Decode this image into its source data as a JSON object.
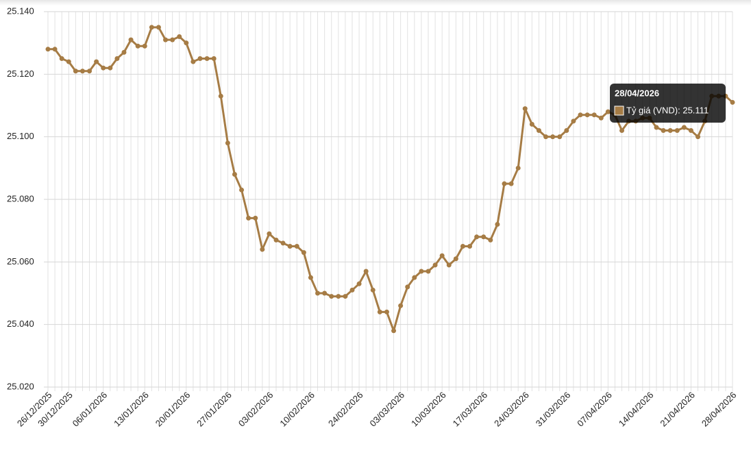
{
  "chart_data": {
    "type": "line",
    "color": "#a67c45",
    "grid": true,
    "categories": [
      "26/12/2025",
      null,
      null,
      "30/12/2025",
      null,
      null,
      null,
      null,
      "06/01/2026",
      null,
      null,
      null,
      null,
      null,
      "13/01/2026",
      null,
      null,
      null,
      null,
      null,
      "20/01/2026",
      null,
      null,
      null,
      null,
      null,
      "27/01/2026",
      null,
      null,
      null,
      null,
      null,
      "03/02/2026",
      null,
      null,
      null,
      null,
      null,
      "10/02/2026",
      null,
      null,
      null,
      null,
      null,
      null,
      "24/02/2026",
      null,
      null,
      null,
      null,
      null,
      "03/03/2026",
      null,
      null,
      null,
      null,
      null,
      "10/03/2026",
      null,
      null,
      null,
      null,
      null,
      "17/03/2026",
      null,
      null,
      null,
      null,
      null,
      "24/03/2026",
      null,
      null,
      null,
      null,
      null,
      "31/03/2026",
      null,
      null,
      null,
      null,
      null,
      "07/04/2026",
      null,
      null,
      null,
      null,
      null,
      "14/04/2026",
      null,
      null,
      null,
      null,
      null,
      "21/04/2026",
      null,
      null,
      null,
      null,
      null,
      "28/04/2026"
    ],
    "values": [
      25128,
      25128,
      25125,
      25124,
      25121,
      25121,
      25121,
      25124,
      25122,
      25122,
      25125,
      25127,
      25131,
      25129,
      25129,
      25135,
      25135,
      25131,
      25131,
      25132,
      25130,
      25124,
      25125,
      25125,
      25125,
      25113,
      25098,
      25088,
      25083,
      25074,
      25074,
      25064,
      25069,
      25067,
      25066,
      25065,
      25065,
      25063,
      25055,
      25050,
      25050,
      25049,
      25049,
      25049,
      25051,
      25053,
      25057,
      25051,
      25044,
      25044,
      25038,
      25046,
      25052,
      25055,
      25057,
      25057,
      25059,
      25062,
      25059,
      25061,
      25065,
      25065,
      25068,
      25068,
      25067,
      25072,
      25085,
      25085,
      25090,
      25109,
      25104,
      25102,
      25100,
      25100,
      25100,
      25102,
      25105,
      25107,
      25107,
      25107,
      25106,
      25108,
      25107,
      25102,
      25105,
      25105,
      25106,
      25106,
      25103,
      25102,
      25102,
      25102,
      25103,
      25102,
      25100,
      25105,
      25113,
      25113,
      25113,
      25111
    ],
    "ylim": [
      25020,
      25140
    ],
    "yticks": [
      {
        "value": 25020,
        "label": "25.020"
      },
      {
        "value": 25040,
        "label": "25.040"
      },
      {
        "value": 25060,
        "label": "25.060"
      },
      {
        "value": 25080,
        "label": "25.080"
      },
      {
        "value": 25100,
        "label": "25.100"
      },
      {
        "value": 25120,
        "label": "25.120"
      },
      {
        "value": 25140,
        "label": "25.140"
      }
    ],
    "tooltip": {
      "title": "28/04/2026",
      "text": "Tỷ giá (VND): 25.111"
    }
  }
}
